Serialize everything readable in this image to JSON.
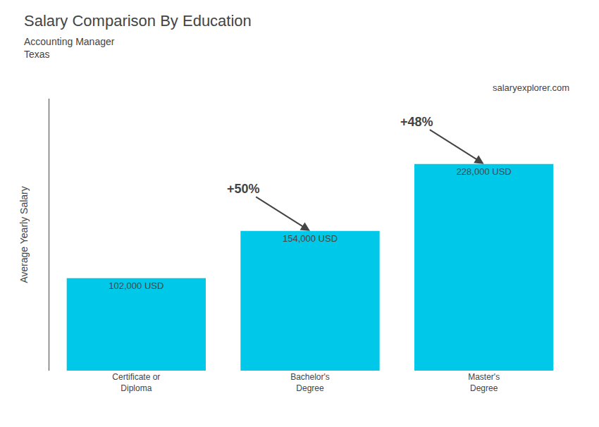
{
  "chart_data": {
    "type": "bar",
    "title": "Salary Comparison By Education",
    "subtitle": [
      "Accounting Manager",
      "Texas"
    ],
    "ylabel": "Average Yearly Salary",
    "categories": [
      "Certificate or\nDiploma",
      "Bachelor's\nDegree",
      "Master's\nDegree"
    ],
    "values": [
      102000,
      154000,
      228000
    ],
    "value_labels": [
      "102,000 USD",
      "154,000 USD",
      "228,000 USD"
    ],
    "data_labels": true,
    "color": "#00c8e8",
    "ylim": [
      0,
      300000
    ],
    "tick_labels": "x",
    "grid": false,
    "annotations": [
      {
        "text": "+50%",
        "arrow": [
          "Certificate or\nDiploma",
          "Bachelor's\nDegree"
        ]
      },
      {
        "text": "+48%",
        "arrow": [
          "Bachelor's\nDegree",
          "Master's\nDegree"
        ]
      },
      {
        "text": "salaryexplorer.com"
      }
    ]
  }
}
